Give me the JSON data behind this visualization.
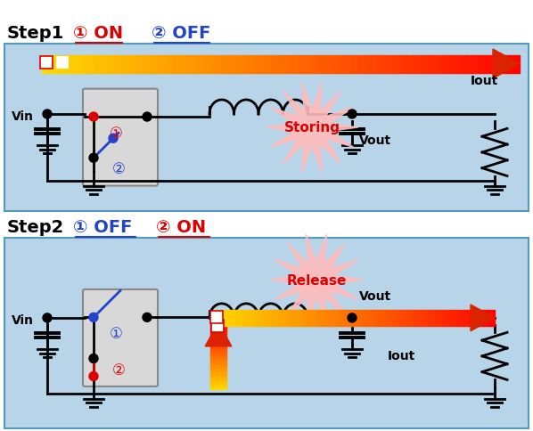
{
  "bg_color": "#b8d4e8",
  "panel_edge": "#5599bb",
  "wire_color": "#000000",
  "switch_box_face": "#d8d8d8",
  "switch_box_edge": "#888888",
  "red_color": "#dd0000",
  "blue_color": "#2244cc",
  "orange_tip": "#dd2200",
  "yellow_start": "#ffdd00",
  "starburst_color": "#ffbbbb",
  "step1_label": "Step1",
  "step2_label": "Step2",
  "s1_on_text": "① ON",
  "s1_off_text": "② OFF",
  "s2_off_text": "① OFF",
  "s2_on_text": "② ON",
  "storing_text": "Storing",
  "release_text": "Release",
  "vin_text": "Vin",
  "vout_text": "Vout",
  "iout_text": "Iout"
}
